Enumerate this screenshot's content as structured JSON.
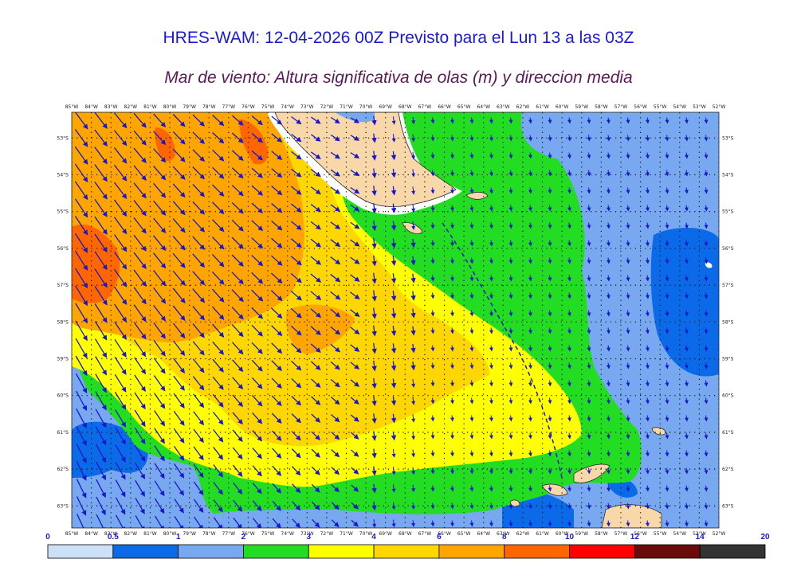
{
  "header": {
    "title": "HRES-WAM: 12-04-2026 00Z Previsto para el Lun 13 a las 03Z",
    "subtitle": "Mar de viento: Altura significativa de olas (m) y direccion media"
  },
  "map": {
    "lon_labels": [
      "85°W",
      "84°W",
      "83°W",
      "82°W",
      "81°W",
      "80°W",
      "79°W",
      "78°W",
      "77°W",
      "76°W",
      "75°W",
      "74°W",
      "73°W",
      "72°W",
      "71°W",
      "70°W",
      "69°W",
      "68°W",
      "67°W",
      "66°W",
      "65°W",
      "64°W",
      "63°W",
      "62°W",
      "61°W",
      "60°W",
      "59°W",
      "58°W",
      "57°W",
      "56°W",
      "55°W",
      "54°W",
      "53°W",
      "52°W"
    ],
    "lat_labels": [
      "53°S",
      "54°S",
      "55°S",
      "56°S",
      "57°S",
      "58°S",
      "59°S",
      "60°S",
      "61°S",
      "62°S",
      "63°S"
    ],
    "lon_range": [
      -85,
      -52
    ],
    "lat_range": [
      -52.3,
      -63.6
    ],
    "colors": {
      "land": "#f8d8a8",
      "arrow": "#1818c8",
      "grid": "#111111"
    }
  },
  "colorbar": {
    "tick_labels": [
      "0",
      "0.5",
      "1",
      "2",
      "3",
      "4",
      "6",
      "8",
      "10",
      "12",
      "14",
      "20"
    ],
    "colors": [
      "#cce0f8",
      "#0a6ae8",
      "#78a8f0",
      "#22dd22",
      "#ffff00",
      "#ffd700",
      "#ffa500",
      "#ff6600",
      "#ff0000",
      "#6a0a0a",
      "#333333"
    ]
  }
}
